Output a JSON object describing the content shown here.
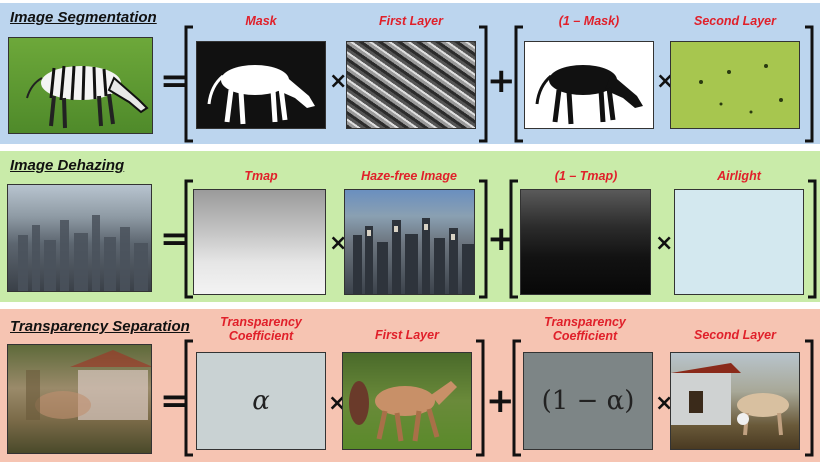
{
  "rows": [
    {
      "title": "Image Segmentation",
      "color": "#bcd5ee",
      "labels": [
        "Mask",
        "First Layer",
        "(1 – Mask)",
        "Second Layer"
      ]
    },
    {
      "title": "Image Dehazing",
      "color": "#c9eba9",
      "labels": [
        "Tmap",
        "Haze-free Image",
        "(1 – Tmap)",
        "Airlight"
      ]
    },
    {
      "title": "Transparency Separation",
      "color": "#f6c4b2",
      "labels": [
        "Transparency\nCoefficient",
        "First Layer",
        "Transparency\nCoefficient",
        "Second Layer"
      ],
      "alpha": "α",
      "one_minus_alpha": "(1 − α)"
    }
  ],
  "operators": {
    "equals": "=",
    "times": "×",
    "plus": "+"
  },
  "colors": {
    "label_red": "#e0202a",
    "airlight": "#d3e8ef",
    "alpha_panel": "#c9d2d3",
    "one_minus_alpha_panel": "#7d8586"
  }
}
